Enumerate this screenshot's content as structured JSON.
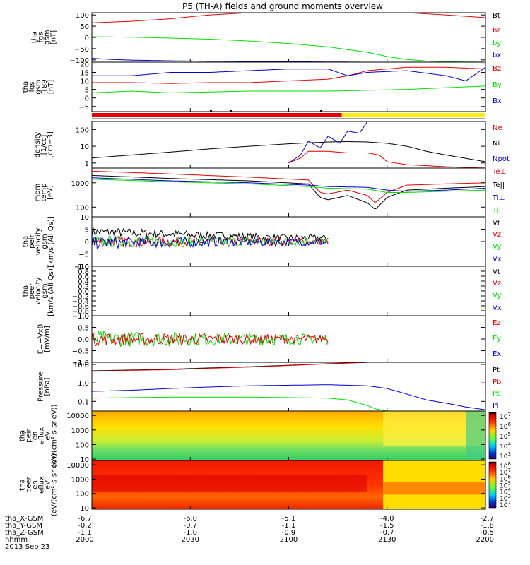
{
  "title": "P5 (TH-A) fields and ground moments overview",
  "date": "2013 Sep 23",
  "colors": {
    "black": "#000000",
    "red": "#e00000",
    "green": "#00dd00",
    "blue": "#0000cc",
    "yellow": "#ffee00",
    "cyan": "#00cccc"
  },
  "chart_data": [
    {
      "type": "line",
      "id": "fgs-gsm",
      "ylabel": [
        "tha",
        "fgs",
        "gsm",
        "[nT]"
      ],
      "ylim": [
        -110,
        110
      ],
      "ytick_values": [
        100,
        50,
        0,
        -50,
        -100
      ],
      "ytick_labels": [
        "100",
        "50",
        "0",
        "−50",
        "−100"
      ],
      "legend": [
        {
          "name": "Bt",
          "color": "black"
        },
        {
          "name": "bz",
          "color": "red"
        },
        {
          "name": "by",
          "color": "green"
        },
        {
          "name": "bx",
          "color": "blue"
        }
      ],
      "series": [
        {
          "name": "bz",
          "color": "red",
          "x": [
            0,
            0.1,
            0.2,
            0.25,
            0.3,
            0.4,
            0.5,
            0.6,
            0.7,
            0.8,
            0.9,
            1
          ],
          "y": [
            65,
            72,
            83,
            92,
            100,
            110,
            115,
            118,
            115,
            110,
            100,
            88
          ]
        },
        {
          "name": "by",
          "color": "green",
          "x": [
            0,
            0.1,
            0.2,
            0.3,
            0.4,
            0.5,
            0.6,
            0.7,
            0.75,
            0.8,
            0.85,
            0.9,
            1
          ],
          "y": [
            3,
            1,
            -3,
            -8,
            -16,
            -27,
            -42,
            -66,
            -85,
            -98,
            -105,
            -108,
            -110
          ]
        },
        {
          "name": "bx",
          "color": "blue",
          "x": [
            0,
            0.05,
            0.1,
            0.2,
            0.3,
            0.4,
            0.5,
            0.6,
            0.7,
            0.8,
            0.9,
            1
          ],
          "y": [
            -93,
            -98,
            -101,
            -104,
            -106,
            -107,
            -108,
            -109,
            -110,
            -110,
            -110,
            -110
          ]
        }
      ]
    },
    {
      "type": "line",
      "id": "fgs-gsm-detrended",
      "ylabel": [
        "tha",
        "fgs",
        "gsm",
        "-T89",
        "[nT]"
      ],
      "ylim": [
        -8,
        21
      ],
      "ytick_values": [
        20,
        15,
        10,
        5,
        0,
        -5
      ],
      "ytick_labels": [
        "20",
        "15",
        "10",
        "5",
        "0",
        "−5"
      ],
      "legend": [
        {
          "name": "Bz",
          "color": "red"
        },
        {
          "name": "By",
          "color": "green"
        },
        {
          "name": "Bx",
          "color": "blue"
        }
      ],
      "series": [
        {
          "name": "Bz",
          "color": "red",
          "x": [
            0,
            0.1,
            0.2,
            0.3,
            0.4,
            0.5,
            0.6,
            0.65,
            0.7,
            0.75,
            0.8,
            0.9,
            1
          ],
          "y": [
            9,
            9,
            8.5,
            9,
            9,
            10,
            11,
            13,
            16,
            17,
            18,
            18,
            17
          ]
        },
        {
          "name": "By",
          "color": "green",
          "x": [
            0,
            0.1,
            0.2,
            0.3,
            0.4,
            0.5,
            0.6,
            0.7,
            0.8,
            0.9,
            1
          ],
          "y": [
            3,
            4,
            3,
            3.5,
            4,
            4,
            4,
            4.5,
            5,
            6,
            7
          ]
        },
        {
          "name": "Bx",
          "color": "blue",
          "x": [
            0,
            0.1,
            0.2,
            0.3,
            0.4,
            0.5,
            0.6,
            0.65,
            0.7,
            0.8,
            0.9,
            0.95,
            1
          ],
          "y": [
            13,
            13,
            15,
            15,
            16,
            17,
            17,
            13,
            15,
            16,
            13,
            10,
            18
          ]
        }
      ]
    },
    {
      "type": "line",
      "id": "density",
      "ylabel": [
        "density",
        "[1/cc]",
        "[cm−3]"
      ],
      "yscale": "log",
      "ylim": [
        0.5,
        300
      ],
      "ytick_values": [
        100,
        10,
        1
      ],
      "ytick_labels": [
        "100",
        "10",
        "1"
      ],
      "legend": [
        {
          "name": "Ne",
          "color": "red"
        },
        {
          "name": "Ni",
          "color": "black"
        },
        {
          "name": "Npot",
          "color": "blue"
        }
      ],
      "series": [
        {
          "name": "Ni",
          "color": "black",
          "x": [
            0,
            0.1,
            0.2,
            0.3,
            0.4,
            0.5,
            0.55,
            0.6,
            0.65,
            0.7,
            0.75,
            0.8,
            0.85,
            0.9,
            1
          ],
          "y": [
            2,
            3,
            4.5,
            7,
            10,
            14,
            16,
            18,
            19,
            18,
            15,
            10,
            5,
            3,
            1.2
          ]
        },
        {
          "name": "Npot",
          "color": "blue",
          "x": [
            0.5,
            0.53,
            0.55,
            0.58,
            0.6,
            0.63,
            0.65,
            0.68,
            0.7
          ],
          "y": [
            1,
            3,
            20,
            8,
            40,
            15,
            80,
            60,
            300
          ]
        },
        {
          "name": "Ne",
          "color": "red",
          "x": [
            0.5,
            0.53,
            0.55,
            0.6,
            0.65,
            0.7,
            0.73,
            0.75,
            0.8,
            0.9,
            1
          ],
          "y": [
            1,
            2,
            5,
            5,
            4,
            4,
            3,
            1.2,
            0.8,
            0.6,
            0.5
          ]
        }
      ]
    },
    {
      "type": "line",
      "id": "mom-temp",
      "ylabel": [
        "mom",
        "temp",
        "[eV]"
      ],
      "yscale": "log",
      "ylim": [
        40,
        4000
      ],
      "ytick_values": [
        1000,
        100
      ],
      "ytick_labels": [
        "1000",
        "100"
      ],
      "legend": [
        {
          "name": "Te⊥",
          "color": "red"
        },
        {
          "name": "Te||",
          "color": "black"
        },
        {
          "name": "Ti⊥",
          "color": "blue"
        },
        {
          "name": "Ti||",
          "color": "green"
        }
      ],
      "series": [
        {
          "name": "Te⊥",
          "color": "red",
          "x": [
            0,
            0.2,
            0.4,
            0.55,
            0.58,
            0.6,
            0.65,
            0.7,
            0.72,
            0.75,
            0.8,
            0.9,
            1
          ],
          "y": [
            3000,
            2300,
            1700,
            1300,
            400,
            350,
            500,
            300,
            150,
            400,
            800,
            900,
            1000
          ]
        },
        {
          "name": "Te||",
          "color": "black",
          "x": [
            0,
            0.2,
            0.4,
            0.55,
            0.58,
            0.6,
            0.65,
            0.7,
            0.72,
            0.75,
            0.8,
            0.9,
            1
          ],
          "y": [
            2000,
            1500,
            1200,
            900,
            250,
            200,
            300,
            150,
            80,
            250,
            500,
            600,
            700
          ]
        },
        {
          "name": "Ti⊥",
          "color": "blue",
          "x": [
            0,
            0.2,
            0.4,
            0.55,
            0.6,
            0.7,
            0.75,
            0.8,
            0.9,
            1
          ],
          "y": [
            1600,
            1200,
            1000,
            800,
            700,
            650,
            500,
            450,
            500,
            600
          ]
        },
        {
          "name": "Ti||",
          "color": "green",
          "x": [
            0,
            0.2,
            0.4,
            0.55,
            0.6,
            0.7,
            0.75,
            0.8,
            0.9,
            1
          ],
          "y": [
            1400,
            1100,
            900,
            700,
            600,
            550,
            400,
            400,
            450,
            500
          ]
        }
      ]
    },
    {
      "type": "line",
      "id": "peir-velocity",
      "ylabel": [
        "tha",
        "peir",
        "velocity",
        "gsm",
        "[km/s (All Qs)]"
      ],
      "ylim": [
        -10,
        10
      ],
      "ytick_values": [
        10,
        5,
        0,
        -5,
        -10
      ],
      "ytick_labels": [
        "10",
        "5",
        "0",
        "−5",
        "−10"
      ],
      "legend": [
        {
          "name": "Vt",
          "color": "black"
        },
        {
          "name": "Vz",
          "color": "red"
        },
        {
          "name": "Vy",
          "color": "green"
        },
        {
          "name": "Vx",
          "color": "blue"
        }
      ],
      "series": [
        {
          "name": "Vt",
          "color": "black",
          "noise": 1.2,
          "x": [
            0,
            0.1,
            0.2,
            0.3,
            0.4,
            0.5,
            0.6
          ],
          "y": [
            4,
            3.5,
            3,
            2.5,
            2,
            1.5,
            1.5
          ]
        },
        {
          "name": "Vz",
          "color": "red",
          "noise": 1.5,
          "x": [
            0,
            0.2,
            0.4,
            0.6
          ],
          "y": [
            0,
            0,
            0,
            0
          ]
        },
        {
          "name": "Vy",
          "color": "green",
          "noise": 1.5,
          "x": [
            0,
            0.2,
            0.4,
            0.6
          ],
          "y": [
            0,
            0,
            0,
            0
          ]
        },
        {
          "name": "Vx",
          "color": "blue",
          "noise": 1.5,
          "x": [
            0,
            0.2,
            0.4,
            0.6
          ],
          "y": [
            -0.5,
            -0.3,
            -0.2,
            -0.2
          ]
        }
      ]
    },
    {
      "type": "line",
      "id": "peer-velocity",
      "ylabel": [
        "tha",
        "peer",
        "velocity",
        "gsm",
        "[km/s (All Qs)]"
      ],
      "ylim": [
        -1,
        1
      ],
      "ytick_values": [
        1,
        0.8,
        0.6,
        0.4,
        0.2,
        0,
        -0.2,
        -0.4,
        -0.6,
        -0.8,
        -1
      ],
      "ytick_labels": [
        "1.0",
        "0.8",
        "0.6",
        "0.4",
        "0.2",
        "0.0",
        "−0.2",
        "−0.4",
        "−0.6",
        "−0.8",
        "−1.0"
      ],
      "legend": [
        {
          "name": "Vt",
          "color": "black"
        },
        {
          "name": "Vz",
          "color": "red"
        },
        {
          "name": "Vy",
          "color": "green"
        },
        {
          "name": "Vx",
          "color": "blue"
        }
      ],
      "series": []
    },
    {
      "type": "line",
      "id": "efield",
      "ylabel": [
        "E=−VxB",
        "[mV/m]"
      ],
      "ylim": [
        -1,
        1
      ],
      "ytick_values": [
        1,
        0.5,
        0,
        -0.5,
        -1
      ],
      "ytick_labels": [
        "1.0",
        "0.5",
        "0.0",
        "−0.5",
        "−1.0"
      ],
      "legend": [
        {
          "name": "Ez",
          "color": "red"
        },
        {
          "name": "Ey",
          "color": "green"
        },
        {
          "name": "Ex",
          "color": "blue"
        }
      ],
      "series": [
        {
          "name": "Ey",
          "color": "green",
          "noise": 0.22,
          "x": [
            0,
            0.3,
            0.6
          ],
          "y": [
            0,
            0,
            0
          ]
        },
        {
          "name": "Ez",
          "color": "red",
          "noise": 0.18,
          "x": [
            0,
            0.3,
            0.6
          ],
          "y": [
            0,
            0,
            0
          ]
        }
      ]
    },
    {
      "type": "line",
      "id": "pressure",
      "ylabel": [
        "Pressure",
        "[nPa]"
      ],
      "yscale": "log",
      "ylim": [
        0.03,
        13
      ],
      "ytick_values": [
        10,
        1,
        0.1
      ],
      "ytick_labels": [
        "10.0",
        "1.0",
        "0.1"
      ],
      "legend": [
        {
          "name": "Pt",
          "color": "black"
        },
        {
          "name": "Pb",
          "color": "red"
        },
        {
          "name": "Pe",
          "color": "green"
        },
        {
          "name": "Pi",
          "color": "blue"
        }
      ],
      "series": [
        {
          "name": "Pt",
          "color": "black",
          "x": [
            0,
            0.1,
            0.2,
            0.3,
            0.4,
            0.5,
            0.6,
            0.65,
            0.7
          ],
          "y": [
            4.5,
            5,
            5.5,
            6.5,
            7.5,
            9,
            11,
            12,
            13
          ]
        },
        {
          "name": "Pb",
          "color": "red",
          "x": [
            0,
            0.1,
            0.2,
            0.3,
            0.4,
            0.5,
            0.6,
            0.65,
            0.7
          ],
          "y": [
            4.2,
            4.8,
            5.2,
            6.2,
            7.2,
            8.7,
            10.8,
            11.8,
            13
          ]
        },
        {
          "name": "Pi",
          "color": "blue",
          "x": [
            0,
            0.1,
            0.2,
            0.3,
            0.4,
            0.5,
            0.6,
            0.7,
            0.75,
            0.8,
            0.85,
            0.9,
            0.95,
            1
          ],
          "y": [
            0.35,
            0.4,
            0.5,
            0.6,
            0.7,
            0.75,
            0.8,
            0.7,
            0.5,
            0.25,
            0.12,
            0.08,
            0.05,
            0.035
          ]
        },
        {
          "name": "Pe",
          "color": "green",
          "x": [
            0,
            0.1,
            0.2,
            0.3,
            0.4,
            0.5,
            0.6,
            0.65,
            0.7,
            0.72,
            0.75,
            0.8,
            0.9,
            1
          ],
          "y": [
            0.15,
            0.16,
            0.17,
            0.17,
            0.17,
            0.16,
            0.15,
            0.12,
            0.06,
            0.04,
            0.03,
            0.03,
            0.03,
            0.03
          ]
        }
      ]
    },
    {
      "type": "heatmap",
      "id": "peir-spectrogram",
      "ylabel": [
        "tha",
        "peir",
        "en",
        "eflux",
        "eV",
        "(eV/(cm²-s-sr-eV))"
      ],
      "yscale": "log",
      "ylim": [
        8,
        20000
      ],
      "ytick_values": [
        10000,
        1000,
        100,
        10
      ],
      "ytick_labels": [
        "10000",
        "1000",
        "100",
        "10"
      ],
      "colorbar": {
        "labels": [
          "10",
          "10",
          "10",
          "10",
          "10"
        ],
        "exponents": [
          "7",
          "6",
          "5",
          "4",
          "3"
        ]
      }
    },
    {
      "type": "heatmap",
      "id": "peer-spectrogram",
      "ylabel": [
        "tha",
        "peer",
        "en",
        "eflux",
        "eV",
        "(eV/(cm²-s-sr-eV))"
      ],
      "yscale": "log",
      "ylim": [
        8,
        20000
      ],
      "ytick_values": [
        10000,
        1000,
        100,
        10
      ],
      "ytick_labels": [
        "10000",
        "1000",
        "100",
        "10"
      ],
      "colorbar": {
        "labels": [
          "10",
          "10",
          "10",
          "10",
          "10",
          "10",
          "10"
        ],
        "exponents": [
          "8",
          "7",
          "6",
          "5",
          "4",
          "3",
          "2"
        ]
      }
    }
  ],
  "xaxis": {
    "rows": [
      {
        "label": "tha_X-GSM",
        "values": [
          "-6.7",
          "-6.0",
          "-5.1",
          "-4.0",
          "-2.7"
        ]
      },
      {
        "label": "tha_Y-GSM",
        "values": [
          "-0.2",
          "-0.7",
          "-1.1",
          "-1.5",
          "-1.8"
        ]
      },
      {
        "label": "tha_Z-GSM",
        "values": [
          "-1.1",
          "-1.0",
          "-0.9",
          "-0.7",
          "-0.5"
        ]
      },
      {
        "label": "hhmm",
        "values": [
          "2000",
          "2030",
          "2100",
          "2130",
          "2200"
        ]
      }
    ],
    "tick_fracs": [
      0,
      0.25,
      0.5,
      0.75,
      1
    ]
  },
  "mode_bar": {
    "segments": [
      {
        "to": 0.635,
        "color": "red"
      },
      {
        "to": 1,
        "color": "yellow"
      }
    ],
    "tick_fracs": [
      0.3,
      0.35,
      0.58
    ]
  }
}
